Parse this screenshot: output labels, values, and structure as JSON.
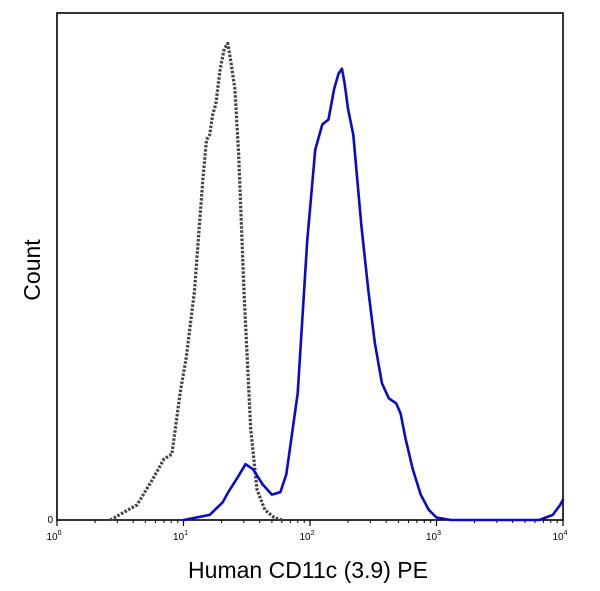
{
  "chart_data": {
    "type": "line",
    "xlabel": "Human CD11c (3.9) PE",
    "ylabel": "Count",
    "x_scale": "log",
    "xlim": [
      1,
      10000
    ],
    "ylim": [
      0,
      100
    ],
    "grid": false,
    "legend": "none",
    "x_ticks": [
      {
        "value": 1,
        "base": "10",
        "exp": "0"
      },
      {
        "value": 10,
        "base": "10",
        "exp": "1"
      },
      {
        "value": 100,
        "base": "10",
        "exp": "2"
      },
      {
        "value": 1000,
        "base": "10",
        "exp": "3"
      },
      {
        "value": 10000,
        "base": "10",
        "exp": "4"
      }
    ],
    "y_ticks": [
      {
        "value": 0,
        "label": "0"
      }
    ],
    "series": [
      {
        "style": "dotted",
        "color": "#444444",
        "x": [
          2.64,
          4.3,
          5.7,
          7.0,
          8.1,
          9.4,
          10.5,
          12.2,
          14.2,
          15.2,
          16.1,
          17.0,
          18.0,
          19.5,
          21.0,
          22.4,
          23.5,
          25.5,
          27.3,
          30.1,
          34.0,
          38.1,
          44.0,
          52.0,
          60.0
        ],
        "y": [
          0,
          3,
          8,
          12,
          13,
          25,
          32,
          45,
          67,
          75,
          76,
          80,
          82,
          89,
          93,
          94,
          91,
          85,
          72,
          45,
          18,
          6,
          2,
          0.5,
          0
        ]
      },
      {
        "style": "solid",
        "color": "#0a0acc",
        "x": [
          10.0,
          16.1,
          20.4,
          22.6,
          26.9,
          30.9,
          35.5,
          42.3,
          50.0,
          58.3,
          65.0,
          80.0,
          95.0,
          110.0,
          125.0,
          140.0,
          155.0,
          168.0,
          179.0,
          188.0,
          200.0,
          220.0,
          255.0,
          290.0,
          325.0,
          370.0,
          420.0,
          480.0,
          520.0,
          570.0,
          650.0,
          750.0,
          870.0,
          1000.0,
          1300.0,
          2000.0,
          4000.0,
          6500.0,
          8300.0,
          9500.0,
          10000.0
        ],
        "y": [
          0,
          1,
          3.5,
          5.5,
          8.5,
          11,
          10,
          7,
          5,
          5.5,
          9,
          25,
          55,
          73,
          78,
          79,
          85,
          88,
          89,
          86,
          81,
          76,
          58,
          45,
          35,
          27,
          24,
          23,
          21,
          16,
          10,
          5,
          2,
          0.5,
          0,
          0,
          0,
          0,
          1,
          3,
          4
        ]
      }
    ]
  }
}
